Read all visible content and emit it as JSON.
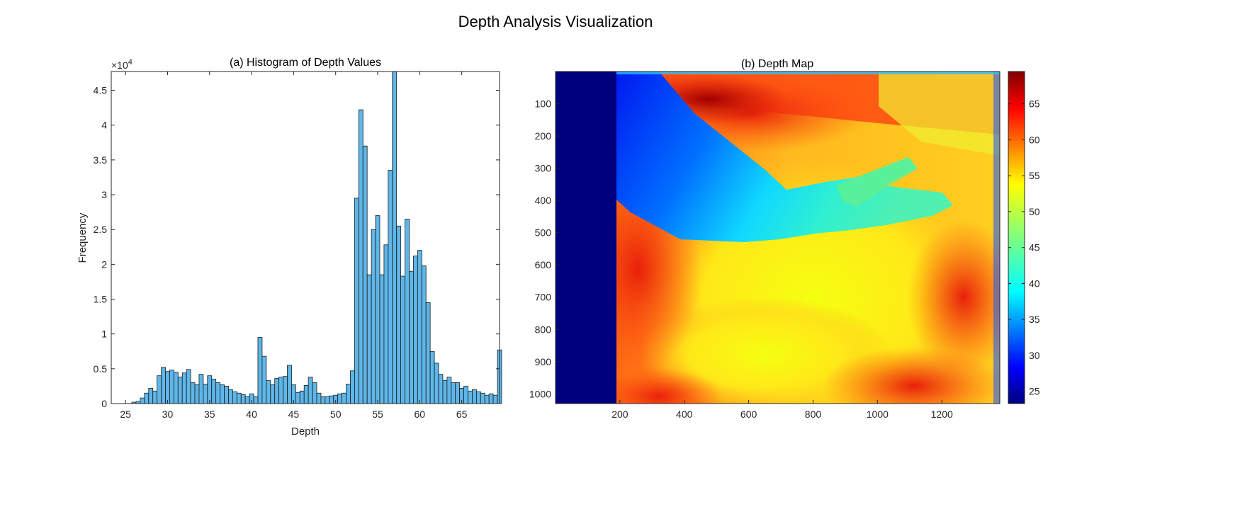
{
  "figure": {
    "title": "Depth Analysis Visualization"
  },
  "chart_data": [
    {
      "type": "bar",
      "title": "(a) Histogram of Depth Values",
      "xlabel": "Depth",
      "ylabel": "Frequency",
      "xlim": [
        23.3,
        69.5
      ],
      "ylim": [
        0,
        4.77
      ],
      "y_exponent_label": "×10",
      "y_exponent": "4",
      "bin_width": 0.5,
      "bar_color": "#5fb6e8",
      "edge_color": "#1a1a1a",
      "x_ticks": [
        25,
        30,
        35,
        40,
        45,
        50,
        55,
        60,
        65
      ],
      "y_ticks": [
        0,
        0.5,
        1,
        1.5,
        2,
        2.5,
        3,
        3.5,
        4,
        4.5
      ],
      "grid": false,
      "x": [
        26,
        26.5,
        27,
        27.5,
        28,
        28.5,
        29,
        29.5,
        30,
        30.5,
        31,
        31.5,
        32,
        32.5,
        33,
        33.5,
        34,
        34.5,
        35,
        35.5,
        36,
        36.5,
        37,
        37.5,
        38,
        38.5,
        39,
        39.5,
        40,
        40.5,
        41,
        41.5,
        42,
        42.5,
        43,
        43.5,
        44,
        44.5,
        45,
        45.5,
        46,
        46.5,
        47,
        47.5,
        48,
        48.5,
        49,
        49.5,
        50,
        50.5,
        51,
        51.5,
        52,
        52.5,
        53,
        53.5,
        54,
        54.5,
        55,
        55.5,
        56,
        56.5,
        57,
        57.5,
        58,
        58.5,
        59,
        59.5,
        60,
        60.5,
        61,
        61.5,
        62,
        62.5,
        63,
        63.5,
        64,
        64.5,
        65,
        65.5,
        66,
        66.5,
        67,
        67.5,
        68,
        68.5,
        69,
        69.5
      ],
      "values": [
        0.02,
        0.03,
        0.08,
        0.15,
        0.22,
        0.18,
        0.4,
        0.52,
        0.46,
        0.48,
        0.45,
        0.38,
        0.44,
        0.49,
        0.3,
        0.27,
        0.42,
        0.28,
        0.4,
        0.35,
        0.3,
        0.27,
        0.25,
        0.2,
        0.17,
        0.15,
        0.13,
        0.1,
        0.14,
        0.1,
        0.95,
        0.68,
        0.33,
        0.27,
        0.36,
        0.38,
        0.39,
        0.55,
        0.27,
        0.16,
        0.18,
        0.26,
        0.38,
        0.3,
        0.15,
        0.1,
        0.1,
        0.11,
        0.12,
        0.14,
        0.15,
        0.28,
        0.47,
        2.95,
        4.22,
        3.7,
        1.85,
        2.5,
        2.7,
        1.85,
        2.28,
        3.35,
        4.77,
        2.55,
        1.83,
        2.65,
        1.9,
        2.12,
        2.2,
        1.98,
        1.45,
        0.75,
        0.58,
        0.42,
        0.33,
        0.38,
        0.3,
        0.3,
        0.22,
        0.25,
        0.18,
        0.2,
        0.17,
        0.15,
        0.12,
        0.14,
        0.12,
        0.77
      ]
    },
    {
      "type": "heatmap",
      "title": "(b) Depth Map",
      "colormap": "jet",
      "xlim": [
        0,
        1380
      ],
      "ylim": [
        0,
        1030
      ],
      "y_reversed": true,
      "x_ticks": [
        200,
        400,
        600,
        800,
        1000,
        1200
      ],
      "y_ticks": [
        100,
        200,
        300,
        400,
        500,
        600,
        700,
        800,
        900,
        1000
      ],
      "colorbar": {
        "range": [
          23.3,
          69.5
        ],
        "ticks": [
          25,
          30,
          35,
          40,
          45,
          50,
          55,
          60,
          65
        ]
      },
      "grid": false
    }
  ]
}
